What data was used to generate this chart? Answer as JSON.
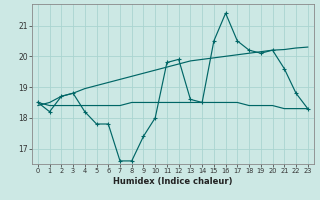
{
  "xlabel": "Humidex (Indice chaleur)",
  "bg_color": "#cce8e4",
  "grid_color": "#aad4d0",
  "line_color": "#006666",
  "xlim_min": -0.5,
  "xlim_max": 23.5,
  "ylim_min": 16.5,
  "ylim_max": 21.7,
  "yticks": [
    17,
    18,
    19,
    20,
    21
  ],
  "xticks": [
    0,
    1,
    2,
    3,
    4,
    5,
    6,
    7,
    8,
    9,
    10,
    11,
    12,
    13,
    14,
    15,
    16,
    17,
    18,
    19,
    20,
    21,
    22,
    23
  ],
  "series1_y": [
    18.5,
    18.2,
    18.7,
    18.8,
    18.2,
    17.8,
    17.8,
    16.6,
    16.6,
    17.4,
    18.0,
    19.8,
    19.9,
    18.6,
    18.5,
    20.5,
    21.4,
    20.5,
    20.2,
    20.1,
    20.2,
    19.6,
    18.8,
    18.3
  ],
  "series2_y": [
    18.5,
    18.4,
    18.4,
    18.4,
    18.4,
    18.4,
    18.4,
    18.4,
    18.5,
    18.5,
    18.5,
    18.5,
    18.5,
    18.5,
    18.5,
    18.5,
    18.5,
    18.5,
    18.4,
    18.4,
    18.4,
    18.3,
    18.3,
    18.3
  ],
  "series3_y": [
    18.4,
    18.5,
    18.7,
    18.8,
    18.95,
    19.05,
    19.15,
    19.25,
    19.35,
    19.45,
    19.55,
    19.65,
    19.75,
    19.85,
    19.9,
    19.95,
    20.0,
    20.05,
    20.1,
    20.15,
    20.2,
    20.22,
    20.27,
    20.3
  ]
}
